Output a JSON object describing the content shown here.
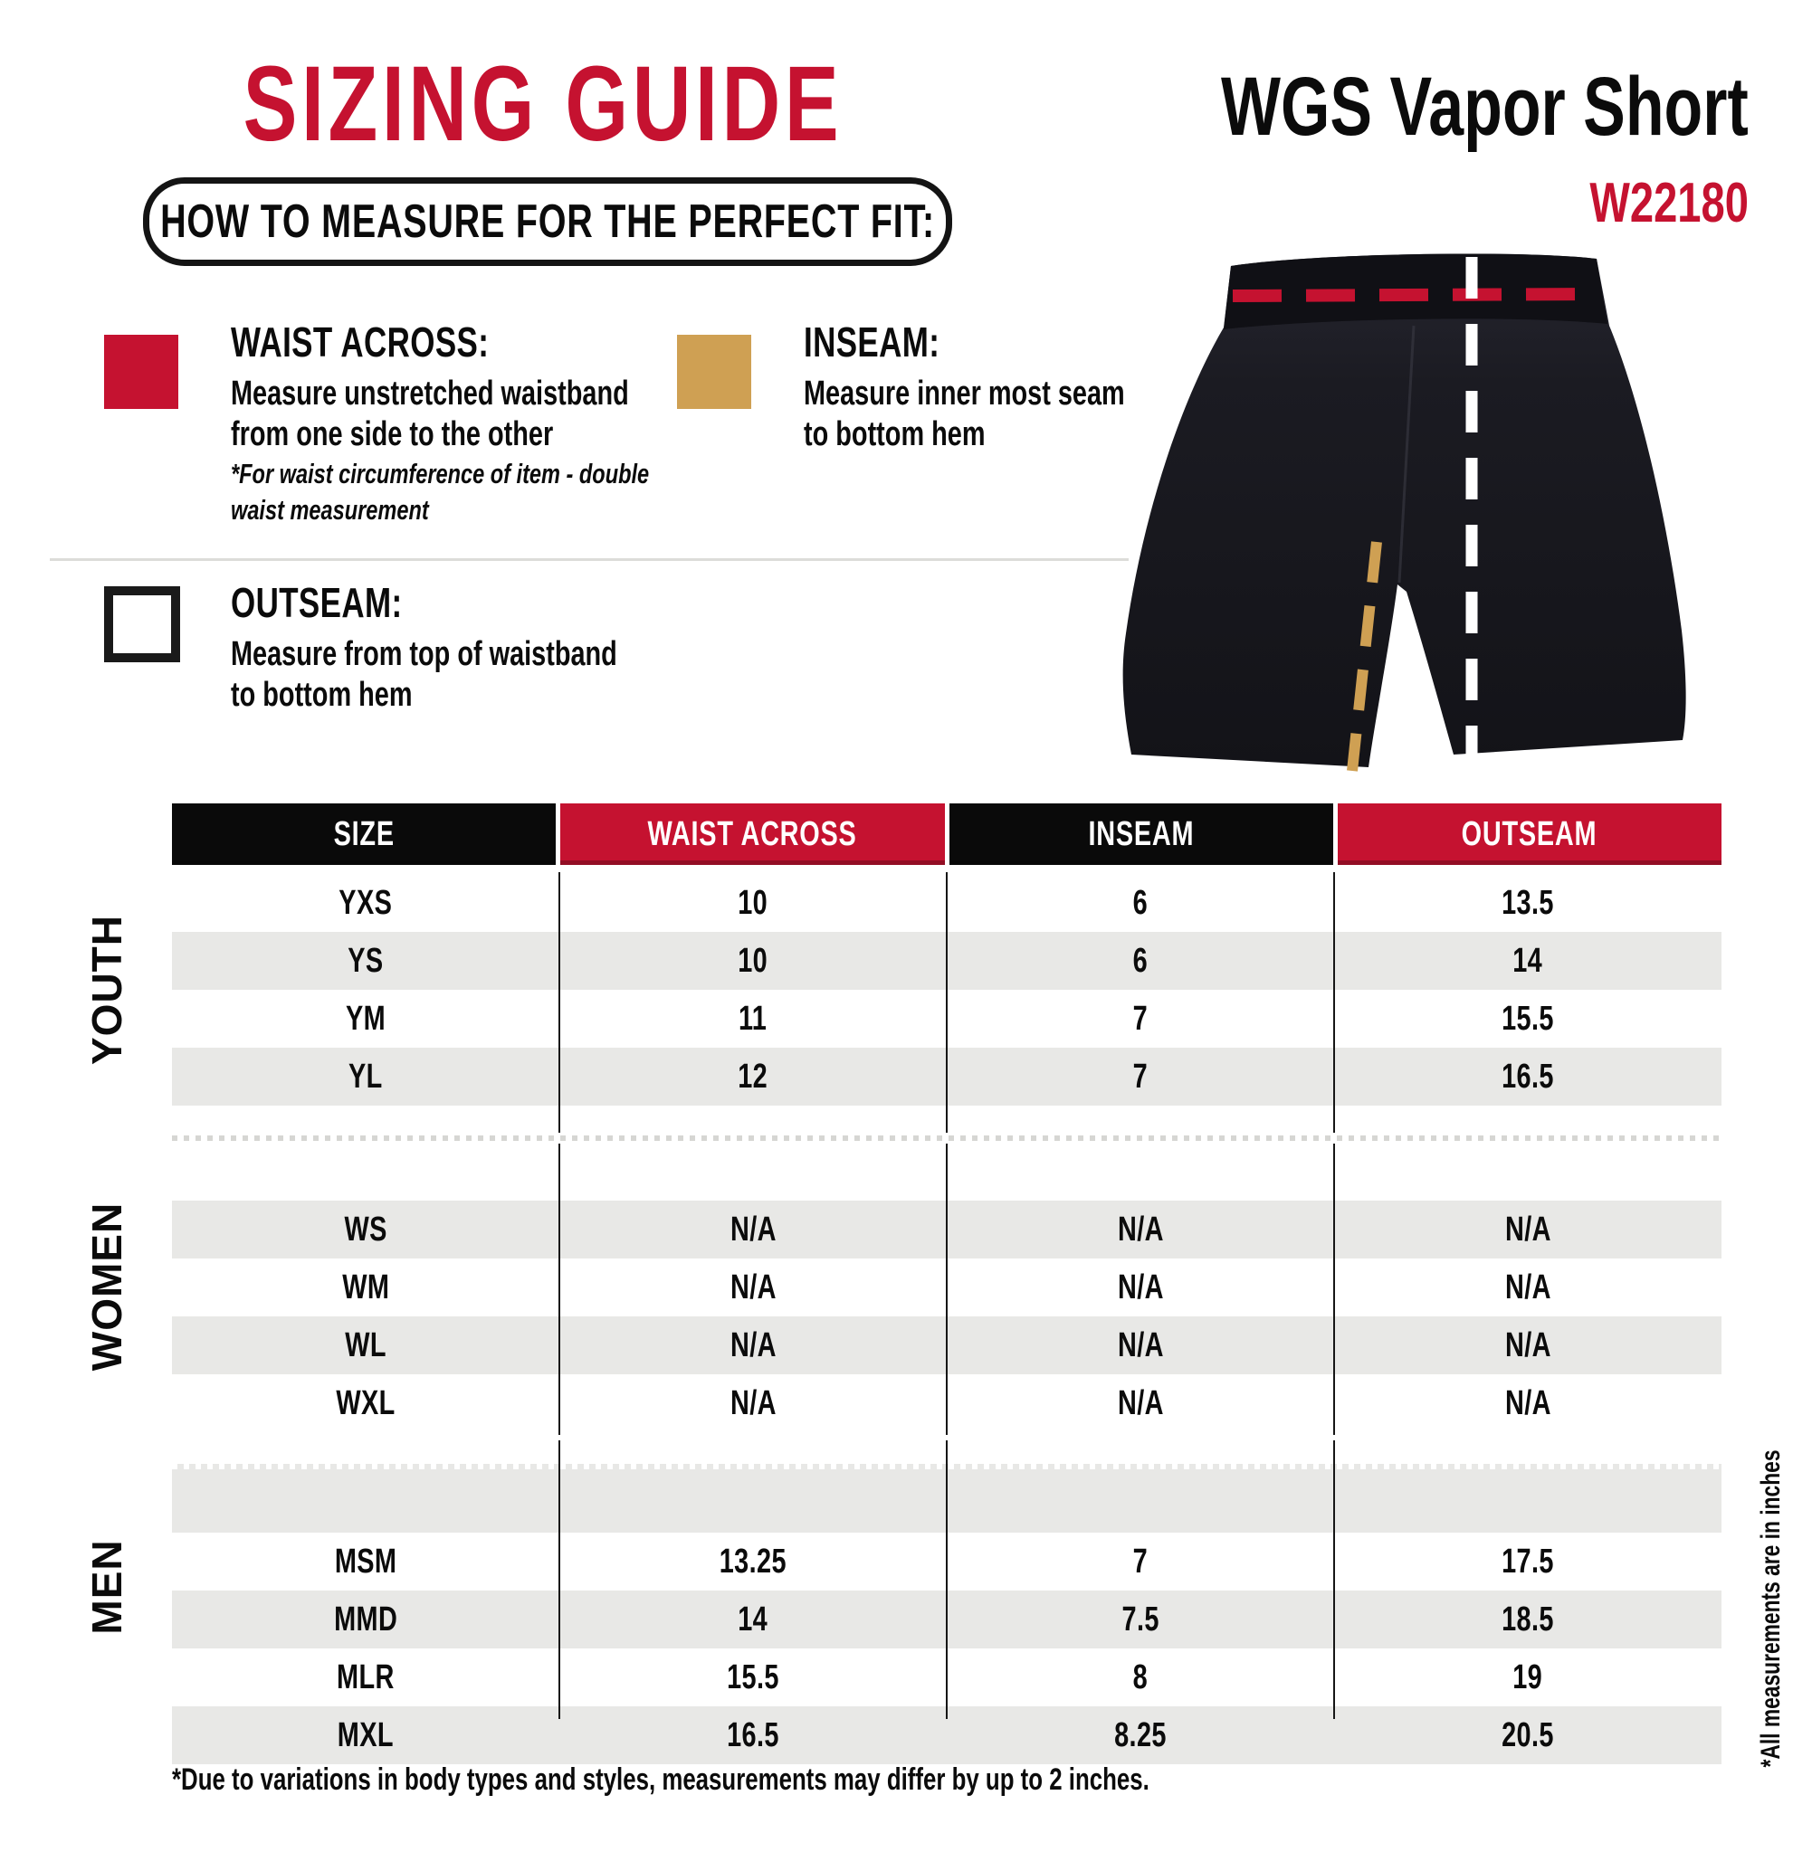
{
  "page": {
    "title": "SIZING GUIDE",
    "subtitle_box": "HOW TO MEASURE FOR THE PERFECT FIT:",
    "product": {
      "name": "WGS Vapor Short",
      "sku": "W22180"
    },
    "footnote": "*Due to variations in body types and styles, measurements may differ by up to 2 inches.",
    "side_note": "*All measurements are in inches"
  },
  "colors": {
    "red": "#c51230",
    "tan": "#cfa053",
    "stripe_gray": "#e8e8e6",
    "header_black": "#0a0a0a"
  },
  "legend": [
    {
      "title": "WAIST ACROSS:",
      "swatch": "red-square-icon",
      "lines": [
        "Measure unstretched waistband",
        "from one side to the other"
      ],
      "note": [
        "*For waist circumference of item - double",
        "waist measurement"
      ]
    },
    {
      "title": "INSEAM:",
      "swatch": "tan-square-icon",
      "lines": [
        "Measure inner most seam",
        "to bottom hem"
      ]
    },
    {
      "title": "OUTSEAM:",
      "swatch": "outline-square-icon",
      "lines": [
        "Measure from top of waistband",
        "to bottom hem"
      ]
    }
  ],
  "table": {
    "headers": [
      "SIZE",
      "WAIST ACROSS",
      "INSEAM",
      "OUTSEAM"
    ],
    "groups": [
      {
        "label": "YOUTH",
        "rows": [
          [
            "YXS",
            "10",
            "6",
            "13.5"
          ],
          [
            "YS",
            "10",
            "6",
            "14"
          ],
          [
            "YM",
            "11",
            "7",
            "15.5"
          ],
          [
            "YL",
            "12",
            "7",
            "16.5"
          ]
        ]
      },
      {
        "label": "WOMEN",
        "rows": [
          [
            "WS",
            "N/A",
            "N/A",
            "N/A"
          ],
          [
            "WM",
            "N/A",
            "N/A",
            "N/A"
          ],
          [
            "WL",
            "N/A",
            "N/A",
            "N/A"
          ],
          [
            "WXL",
            "N/A",
            "N/A",
            "N/A"
          ]
        ]
      },
      {
        "label": "MEN",
        "rows": [
          [
            "MSM",
            "13.25",
            "7",
            "17.5"
          ],
          [
            "MMD",
            "14",
            "7.5",
            "18.5"
          ],
          [
            "MLR",
            "15.5",
            "8",
            "19"
          ],
          [
            "MXL",
            "16.5",
            "8.25",
            "20.5"
          ]
        ]
      }
    ]
  }
}
